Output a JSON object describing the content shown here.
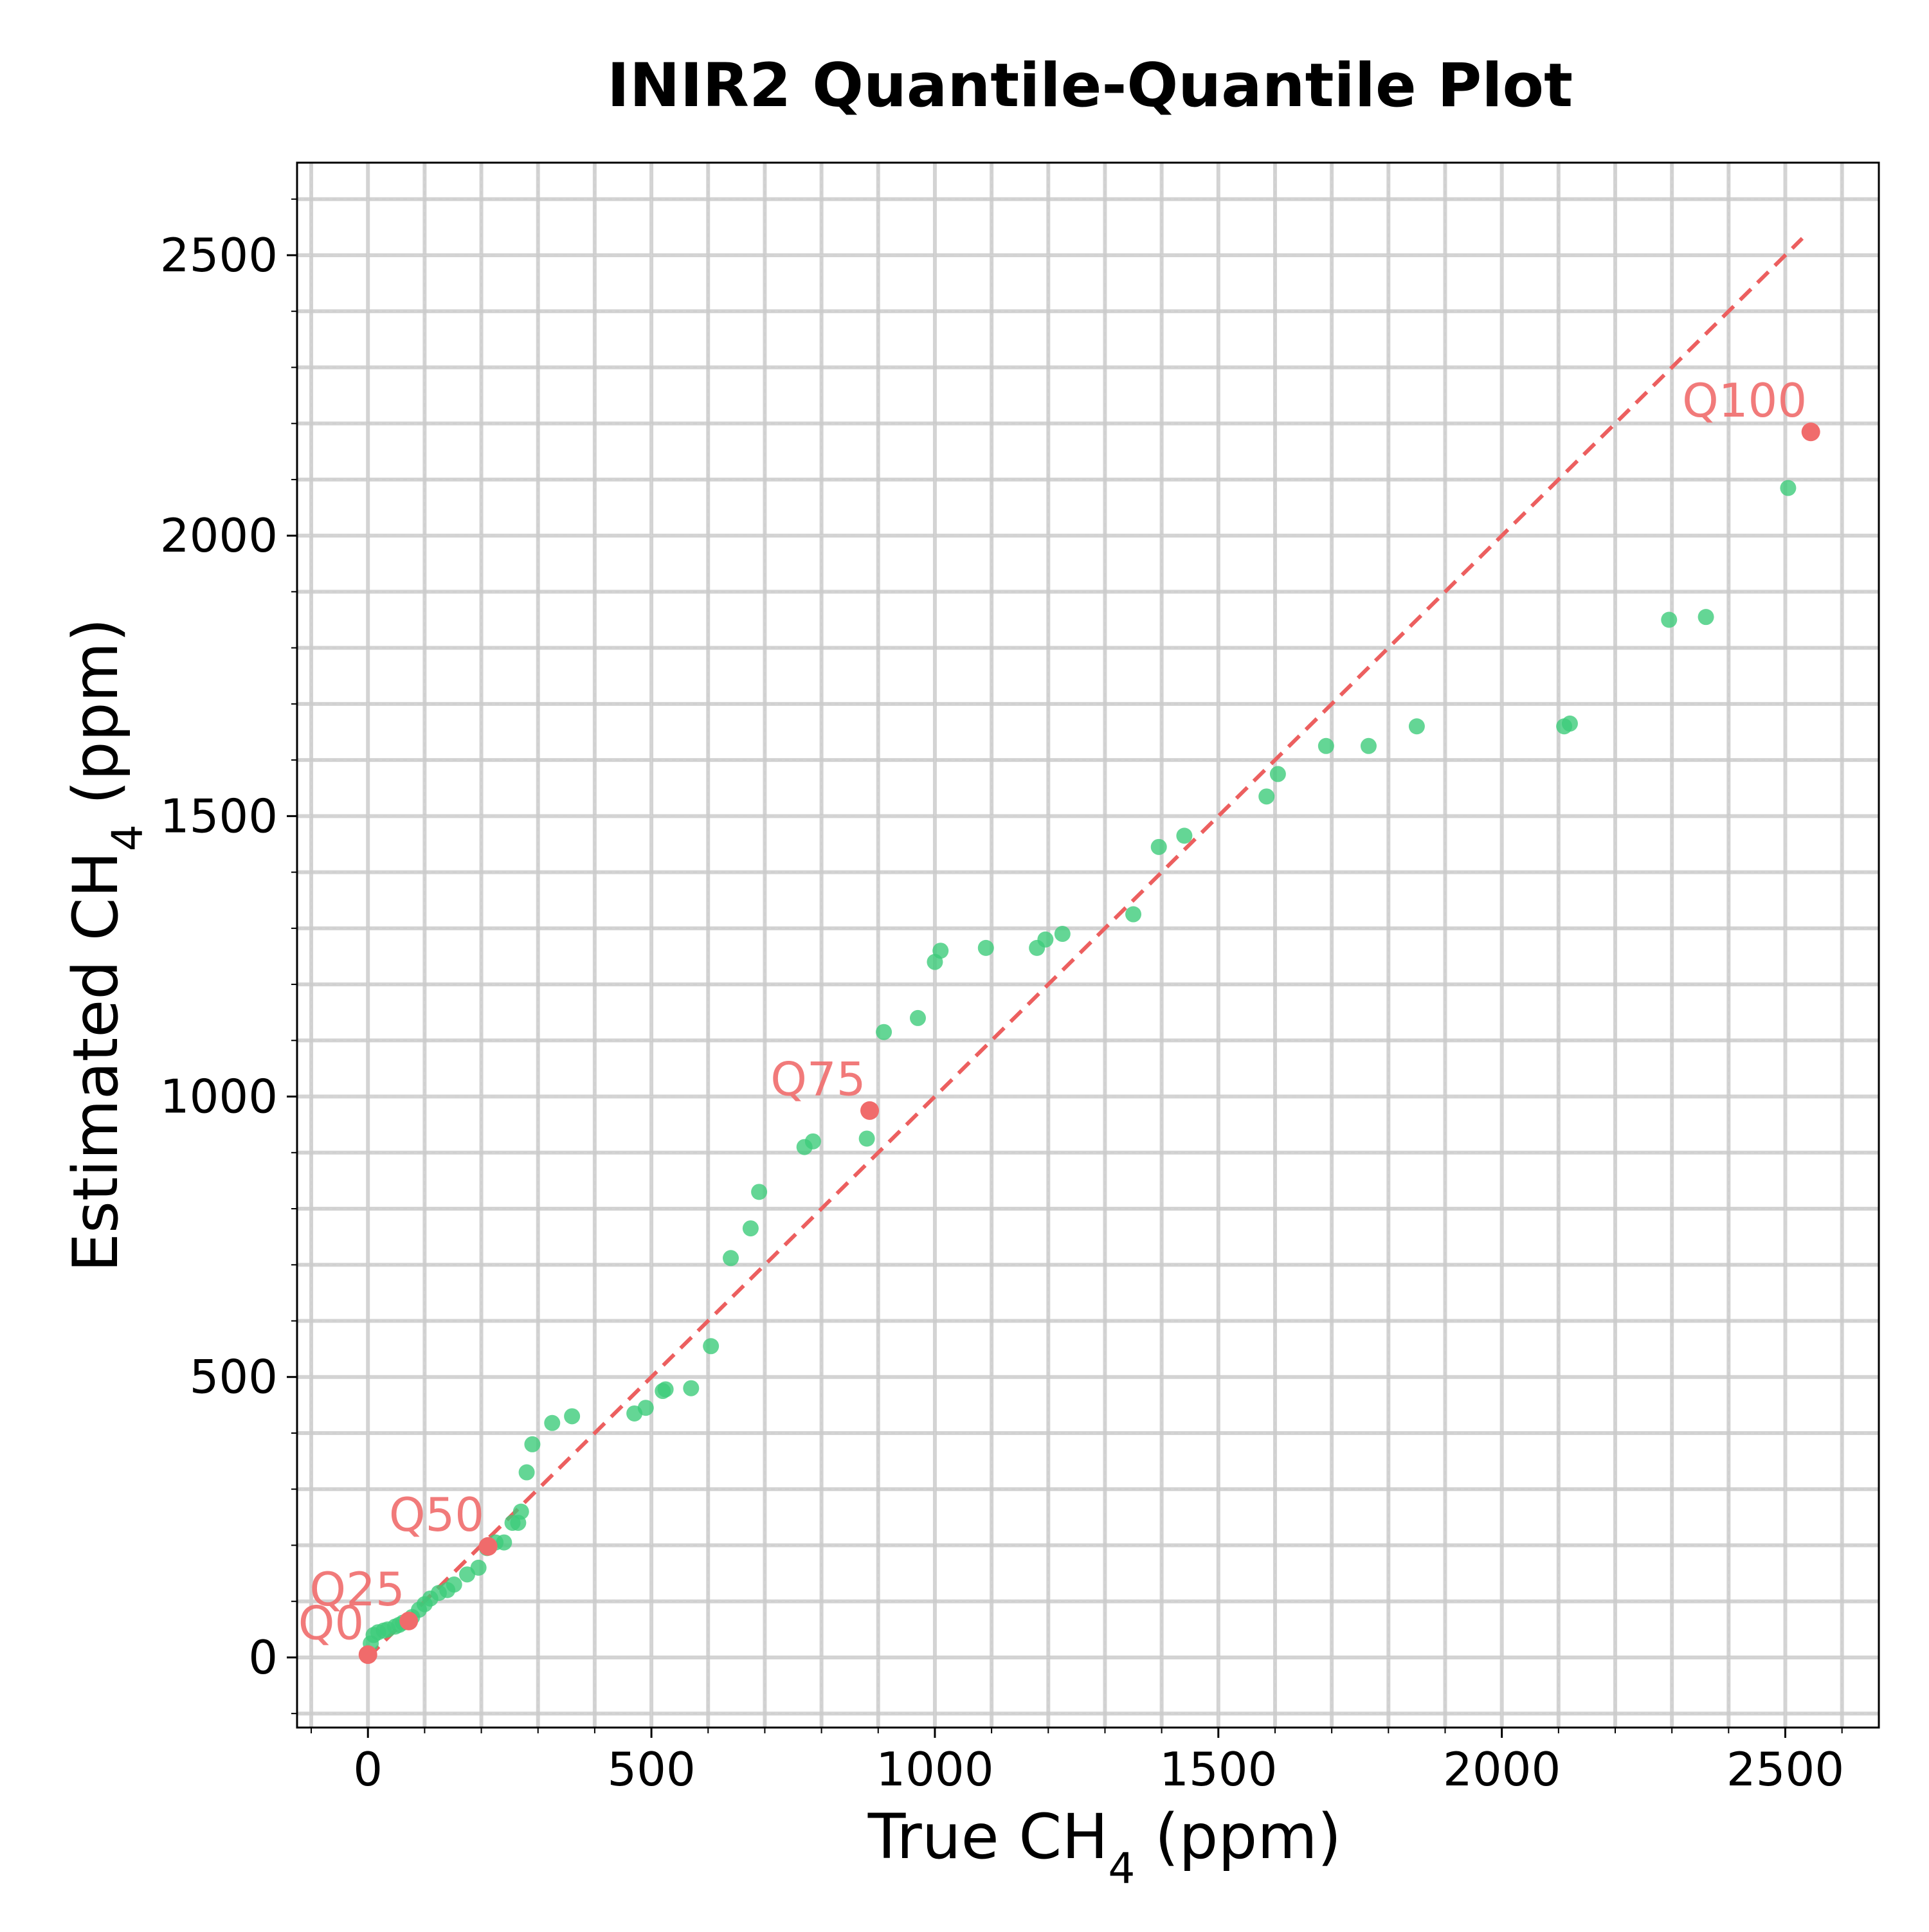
{
  "chart_data": {
    "type": "scatter",
    "title": "INIR2 Quantile-Quantile Plot",
    "xlabel": {
      "main": "True CH",
      "sub": "4",
      "unit": " (ppm)"
    },
    "ylabel": {
      "main": "Estimated CH",
      "sub": "4",
      "unit": " (ppm)"
    },
    "xlim": [
      -125,
      2665
    ],
    "ylim": [
      -125,
      2665
    ],
    "x_ticks": [
      0,
      500,
      1000,
      1500,
      2000,
      2500
    ],
    "y_ticks": [
      0,
      500,
      1000,
      1500,
      2000,
      2500
    ],
    "x_tick_labels": [
      "0",
      "500",
      "1000",
      "1500",
      "2000",
      "2500"
    ],
    "y_tick_labels": [
      "0",
      "500",
      "1000",
      "1500",
      "2000",
      "2500"
    ],
    "grid": true,
    "colors": {
      "points": "#3dcc7a",
      "quantiles": "#f06b6b",
      "reference_line": "#ec5f5f",
      "grid_major": "#cccccc",
      "grid_minor": "#dddddd"
    },
    "reference_line": {
      "x": [
        0,
        2530
      ],
      "y": [
        0,
        2530
      ],
      "style": "dashed"
    },
    "series": [
      {
        "points": [
          [
            5,
            25
          ],
          [
            10,
            40
          ],
          [
            18,
            45
          ],
          [
            28,
            48
          ],
          [
            35,
            50
          ],
          [
            48,
            55
          ],
          [
            55,
            58
          ],
          [
            62,
            62
          ],
          [
            78,
            72
          ],
          [
            90,
            85
          ],
          [
            100,
            95
          ],
          [
            110,
            105
          ],
          [
            125,
            115
          ],
          [
            140,
            120
          ],
          [
            152,
            130
          ],
          [
            175,
            148
          ],
          [
            195,
            160
          ],
          [
            210,
            195
          ],
          [
            225,
            205
          ],
          [
            240,
            205
          ],
          [
            255,
            240
          ],
          [
            265,
            240
          ],
          [
            270,
            260
          ],
          [
            280,
            330
          ],
          [
            290,
            380
          ],
          [
            325,
            418
          ],
          [
            360,
            430
          ],
          [
            470,
            435
          ],
          [
            490,
            445
          ],
          [
            520,
            475
          ],
          [
            525,
            478
          ],
          [
            570,
            480
          ],
          [
            605,
            555
          ],
          [
            640,
            712
          ],
          [
            675,
            765
          ],
          [
            690,
            830
          ],
          [
            770,
            910
          ],
          [
            785,
            920
          ],
          [
            880,
            925
          ],
          [
            910,
            1115
          ],
          [
            970,
            1140
          ],
          [
            1000,
            1240
          ],
          [
            1010,
            1260
          ],
          [
            1090,
            1265
          ],
          [
            1180,
            1265
          ],
          [
            1195,
            1280
          ],
          [
            1225,
            1290
          ],
          [
            1350,
            1325
          ],
          [
            1395,
            1445
          ],
          [
            1440,
            1465
          ],
          [
            1585,
            1535
          ],
          [
            1605,
            1575
          ],
          [
            1690,
            1625
          ],
          [
            1765,
            1625
          ],
          [
            1850,
            1660
          ],
          [
            2110,
            1660
          ],
          [
            2120,
            1665
          ],
          [
            2295,
            1850
          ],
          [
            2360,
            1855
          ],
          [
            2505,
            2085
          ]
        ]
      }
    ],
    "quantiles": [
      {
        "label": "Q0",
        "x": 0,
        "y": 5
      },
      {
        "label": "Q25",
        "x": 72,
        "y": 65
      },
      {
        "label": "Q50",
        "x": 212,
        "y": 198
      },
      {
        "label": "Q75",
        "x": 885,
        "y": 975
      },
      {
        "label": "Q100",
        "x": 2545,
        "y": 2185
      }
    ]
  }
}
